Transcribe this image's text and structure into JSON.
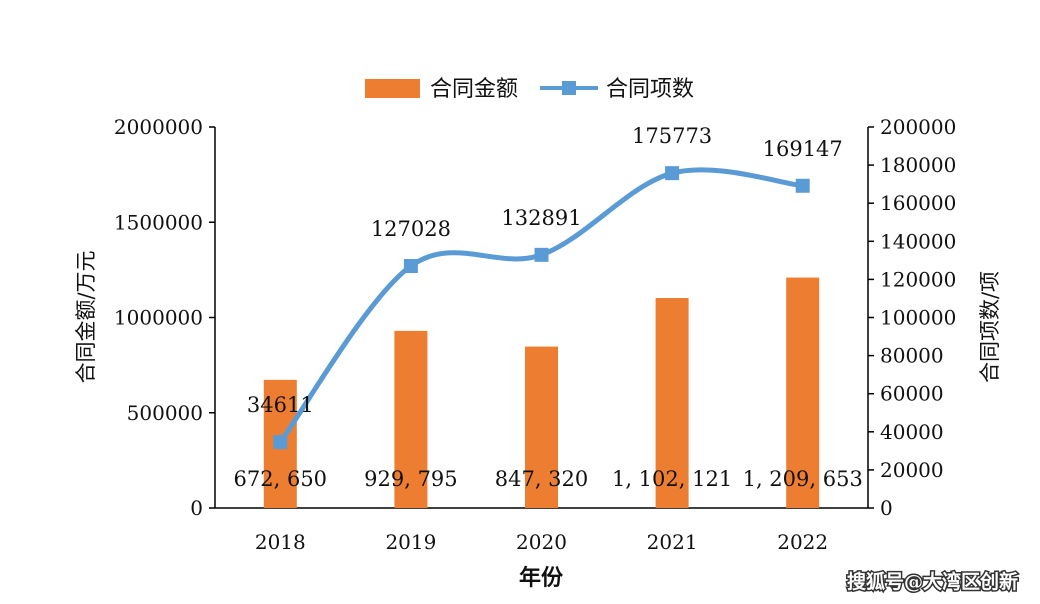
{
  "chart_data": {
    "type": "bar",
    "categories": [
      "2018",
      "2019",
      "2020",
      "2021",
      "2022"
    ],
    "xlabel": "年份",
    "y_left": {
      "label": "合同金额/万元",
      "ylim": [
        0,
        2000000
      ],
      "ticks": [
        0,
        500000,
        1000000,
        1500000,
        2000000
      ]
    },
    "y_right": {
      "label": "合同项数/项",
      "ylim": [
        0,
        200000
      ],
      "ticks": [
        0,
        20000,
        40000,
        60000,
        80000,
        100000,
        120000,
        140000,
        160000,
        180000,
        200000
      ]
    },
    "series": [
      {
        "name": "合同金额",
        "type": "bar",
        "axis": "left",
        "color": "#ED7D31",
        "values": [
          672650,
          929795,
          847320,
          1102121,
          1209653
        ],
        "labels": [
          "672, 650",
          "929, 795",
          "847, 320",
          "1, 102, 121",
          "1, 209, 653"
        ]
      },
      {
        "name": "合同项数",
        "type": "line",
        "axis": "right",
        "color": "#5B9BD5",
        "smooth": true,
        "marker": "square",
        "values": [
          34611,
          127028,
          132891,
          175773,
          169147
        ],
        "labels": [
          "34611",
          "127028",
          "132891",
          "175773",
          "169147"
        ]
      }
    ],
    "legend": "top-center",
    "grid": false
  },
  "watermark": "搜狐号@大湾区创新"
}
